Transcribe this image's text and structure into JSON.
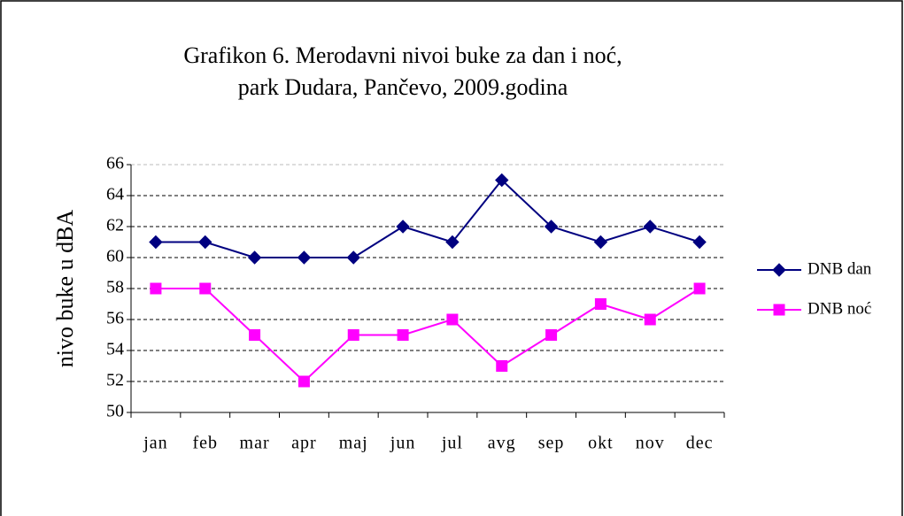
{
  "chart_data": {
    "type": "line",
    "title": [
      "Grafikon 6. Merodavni nivoi buke za dan i noć,",
      "park Dudara, Pančevo,  2009.godina"
    ],
    "y_label": "nivo buke u dBA",
    "categories": [
      "jan",
      "feb",
      "mar",
      "apr",
      "maj",
      "jun",
      "jul",
      "avg",
      "sep",
      "okt",
      "nov",
      "dec"
    ],
    "series": [
      {
        "name": "DNB dan",
        "color": "#000080",
        "marker": "diamond",
        "values": [
          61,
          61,
          60,
          60,
          60,
          62,
          61,
          65,
          62,
          61,
          62,
          61
        ]
      },
      {
        "name": "DNB noć",
        "color": "#ff00ff",
        "marker": "square",
        "values": [
          58,
          58,
          55,
          52,
          55,
          55,
          56,
          53,
          55,
          57,
          56,
          58
        ]
      }
    ],
    "ylim": [
      50,
      66
    ],
    "yticks": [
      50,
      52,
      54,
      56,
      58,
      60,
      62,
      64,
      66
    ],
    "grid": true,
    "legend": "right"
  }
}
